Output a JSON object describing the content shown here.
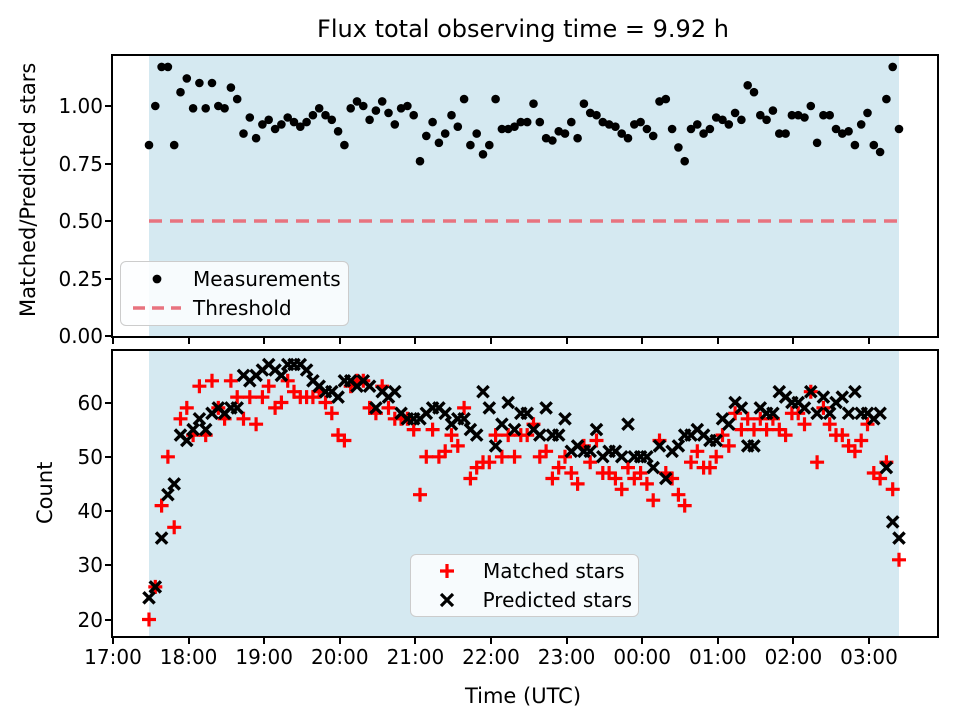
{
  "title": "Flux total observing time = 9.92 h",
  "colors": {
    "shade": "#d5e9f1",
    "threshold": "#e8737f",
    "matched": "#ff0000",
    "predicted": "#000000",
    "measurements": "#000000",
    "legend_border": "#cccccc",
    "spine": "#000000"
  },
  "xaxis": {
    "label": "Time (UTC)",
    "tick_labels": [
      "17:00",
      "18:00",
      "19:00",
      "20:00",
      "21:00",
      "22:00",
      "23:00",
      "00:00",
      "01:00",
      "02:00",
      "03:00"
    ]
  },
  "chart_data": [
    {
      "type": "scatter",
      "title": "Flux total observing time = 9.92 h",
      "ylabel": "Matched/Predicted stars",
      "ylim": [
        0.0,
        1.22
      ],
      "yticks": [
        0.0,
        0.25,
        0.5,
        0.75,
        1.0
      ],
      "ytick_labels": [
        "0.00",
        "0.25",
        "0.50",
        "0.75",
        "1.00"
      ],
      "x_start_utc": "17:29",
      "x_step_minutes": 5,
      "n_points": 120,
      "shaded_span_utc": [
        "17:29",
        "03:24"
      ],
      "legend_position": "lower left",
      "threshold": {
        "label": "Threshold",
        "value": 0.5,
        "linestyle": "dashed",
        "color": "#e8737f"
      },
      "series": [
        {
          "name": "Measurements",
          "marker": "point",
          "color": "#000000",
          "values": [
            0.83,
            1.0,
            1.17,
            1.17,
            0.83,
            1.06,
            1.12,
            0.99,
            1.1,
            0.99,
            1.1,
            1.0,
            0.99,
            1.08,
            1.03,
            0.88,
            0.95,
            0.86,
            0.92,
            0.94,
            0.9,
            0.92,
            0.95,
            0.93,
            0.91,
            0.93,
            0.96,
            0.99,
            0.96,
            0.94,
            0.89,
            0.83,
            0.99,
            1.02,
            1.0,
            0.94,
            0.98,
            1.02,
            0.97,
            0.92,
            0.99,
            1.0,
            0.96,
            0.76,
            0.87,
            0.93,
            0.84,
            0.88,
            0.96,
            0.91,
            1.03,
            0.83,
            0.88,
            0.79,
            0.83,
            1.03,
            0.9,
            0.9,
            0.91,
            0.93,
            0.93,
            1.01,
            0.93,
            0.86,
            0.85,
            0.89,
            0.88,
            0.93,
            0.86,
            1.01,
            0.97,
            0.96,
            0.93,
            0.92,
            0.91,
            0.88,
            0.86,
            0.92,
            0.93,
            0.9,
            0.87,
            1.02,
            1.03,
            0.9,
            0.82,
            0.76,
            0.9,
            0.92,
            0.88,
            0.9,
            0.95,
            0.94,
            0.92,
            0.97,
            0.94,
            1.09,
            1.06,
            0.96,
            0.94,
            0.98,
            0.88,
            0.88,
            0.96,
            0.96,
            0.95,
            1.0,
            0.84,
            0.96,
            0.96,
            0.9,
            0.88,
            0.89,
            0.83,
            0.92,
            0.97,
            0.83,
            0.8,
            1.03,
            1.17,
            0.9
          ]
        }
      ]
    },
    {
      "type": "scatter",
      "ylabel": "Count",
      "xlabel": "Time (UTC)",
      "ylim": [
        17,
        69.5
      ],
      "yticks": [
        20,
        30,
        40,
        50,
        60
      ],
      "ytick_labels": [
        "20",
        "30",
        "40",
        "50",
        "60"
      ],
      "xtick_labels": [
        "17:00",
        "18:00",
        "19:00",
        "20:00",
        "21:00",
        "22:00",
        "23:00",
        "00:00",
        "01:00",
        "02:00",
        "03:00"
      ],
      "x_start_utc": "17:29",
      "x_step_minutes": 5,
      "n_points": 120,
      "shaded_span_utc": [
        "17:29",
        "03:24"
      ],
      "legend_position": "lower center",
      "series": [
        {
          "name": "Matched stars",
          "marker": "plus",
          "color": "#ff0000",
          "values": [
            20,
            26,
            41,
            50,
            37,
            57,
            59,
            54,
            63,
            54,
            64,
            59,
            57,
            64,
            61,
            57,
            61,
            56,
            61,
            63,
            59,
            60,
            64,
            62,
            61,
            61,
            61,
            62,
            60,
            58,
            54,
            53,
            63,
            64,
            64,
            59,
            58,
            63,
            59,
            57,
            57,
            57,
            55,
            43,
            50,
            55,
            50,
            51,
            54,
            52,
            59,
            46,
            48,
            49,
            49,
            54,
            50,
            54,
            50,
            54,
            54,
            56,
            50,
            51,
            46,
            48,
            50,
            47,
            45,
            52,
            49,
            53,
            47,
            47,
            46,
            44,
            48,
            46,
            47,
            45,
            42,
            53,
            47,
            46,
            43,
            41,
            49,
            51,
            48,
            48,
            50,
            54,
            52,
            58,
            55,
            57,
            55,
            57,
            55,
            57,
            55,
            54,
            58,
            58,
            56,
            62,
            49,
            59,
            56,
            54,
            54,
            52,
            51,
            53,
            56,
            47,
            46,
            49,
            44,
            31
          ]
        },
        {
          "name": "Predicted stars",
          "marker": "x",
          "color": "#000000",
          "values": [
            24,
            26,
            35,
            43,
            45,
            54,
            53,
            55,
            57,
            55,
            58,
            59,
            58,
            59,
            59,
            65,
            64,
            65,
            66,
            67,
            66,
            65,
            67,
            67,
            67,
            66,
            64,
            63,
            62,
            62,
            61,
            64,
            64,
            63,
            64,
            63,
            59,
            62,
            61,
            62,
            58,
            57,
            57,
            57,
            58,
            59,
            59,
            58,
            56,
            57,
            57,
            55,
            54,
            62,
            59,
            52,
            56,
            60,
            55,
            58,
            58,
            55,
            54,
            59,
            54,
            54,
            57,
            51,
            52,
            51,
            51,
            55,
            50,
            51,
            51,
            50,
            56,
            50,
            50,
            50,
            48,
            52,
            46,
            51,
            52,
            54,
            54,
            55,
            54,
            53,
            53,
            57,
            56,
            60,
            59,
            52,
            52,
            59,
            58,
            58,
            62,
            61,
            60,
            60,
            59,
            62,
            58,
            61,
            58,
            60,
            61,
            58,
            62,
            58,
            58,
            57,
            58,
            48,
            38,
            35
          ]
        }
      ]
    }
  ]
}
